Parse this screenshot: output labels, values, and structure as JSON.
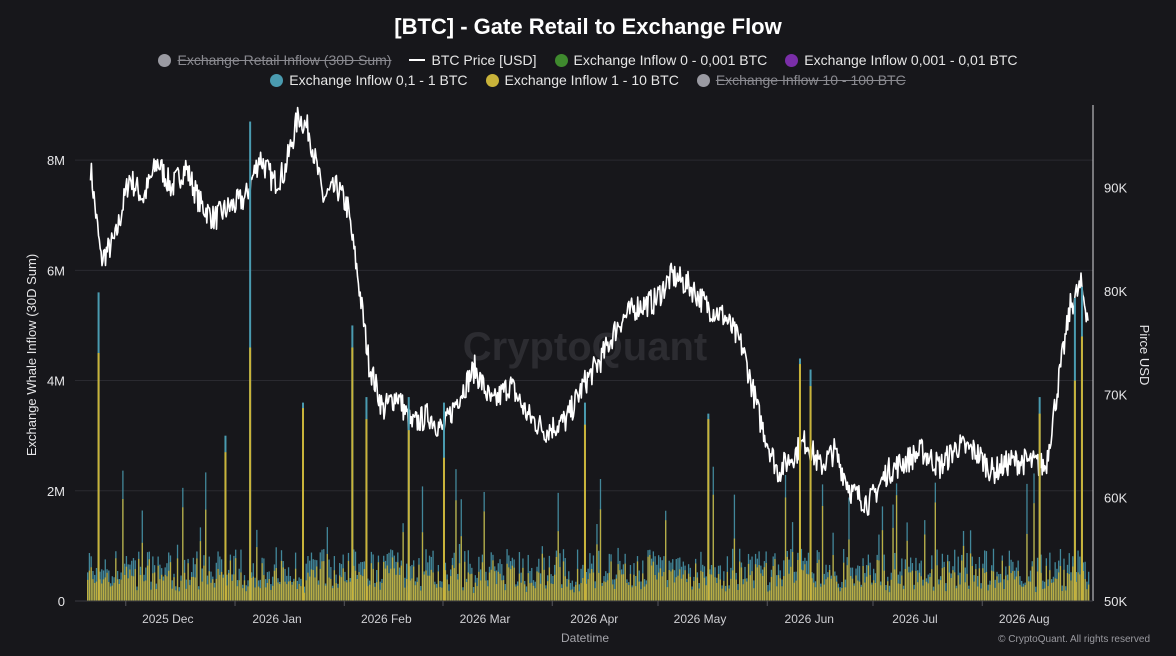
{
  "title": "[BTC] - Gate Retail to Exchange Flow",
  "legend": [
    {
      "label": "Exchange Retail Inflow (30D Sum)",
      "color": "#9a9aa2",
      "marker": "dot",
      "hidden": true
    },
    {
      "label": "BTC Price [USD]",
      "color": "#ffffff",
      "marker": "line",
      "hidden": false
    },
    {
      "label": "Exchange Inflow 0 - 0,001 BTC",
      "color": "#3f8a2e",
      "marker": "dot",
      "hidden": false
    },
    {
      "label": "Exchange Inflow 0,001 - 0,01 BTC",
      "color": "#7a2ea8",
      "marker": "dot",
      "hidden": false
    },
    {
      "label": "Exchange Inflow 0,1 - 1 BTC",
      "color": "#4a9bb0",
      "marker": "dot",
      "hidden": false
    },
    {
      "label": "Exchange Inflow 1 - 10 BTC",
      "color": "#c9b33a",
      "marker": "dot",
      "hidden": false
    },
    {
      "label": "Exchange Inflow 10 - 100 BTC",
      "color": "#9a9aa2",
      "marker": "dot",
      "hidden": true
    }
  ],
  "watermark": "CryptoQuant",
  "footer": "© CryptoQuant. All rights reserved",
  "chart_data": {
    "type": "bar",
    "xlabel": "Datetime",
    "ylabel": "Exchange Whale Inflow (30D Sum)",
    "y2label": "Pirce USD",
    "ylim": [
      0,
      9000000
    ],
    "y2lim": [
      50000,
      98000
    ],
    "y_ticks": [
      {
        "value": 0,
        "label": "0"
      },
      {
        "value": 2000000,
        "label": "2M"
      },
      {
        "value": 4000000,
        "label": "4M"
      },
      {
        "value": 6000000,
        "label": "6M"
      },
      {
        "value": 8000000,
        "label": "8M"
      }
    ],
    "y2_ticks": [
      {
        "value": 50000,
        "label": "50K"
      },
      {
        "value": 60000,
        "label": "60K"
      },
      {
        "value": 70000,
        "label": "70K"
      },
      {
        "value": 80000,
        "label": "80K"
      },
      {
        "value": 90000,
        "label": "90K"
      }
    ],
    "x_range": [
      "2025-11-20",
      "2026-08-31"
    ],
    "x_ticks": [
      {
        "date": "2025-12-01",
        "label": "2025 Dec"
      },
      {
        "date": "2026-01-01",
        "label": "2026 Jan"
      },
      {
        "date": "2026-02-01",
        "label": "2026 Feb"
      },
      {
        "date": "2026-03-01",
        "label": "2026 Mar"
      },
      {
        "date": "2026-04-01",
        "label": "2026 Apr"
      },
      {
        "date": "2026-05-01",
        "label": "2026 May"
      },
      {
        "date": "2026-06-01",
        "label": "2026 Jun"
      },
      {
        "date": "2026-07-01",
        "label": "2026 Jul"
      },
      {
        "date": "2026-08-01",
        "label": "2026 Aug"
      }
    ],
    "price_series": {
      "name": "BTC Price [USD]",
      "color": "#ffffff",
      "points": [
        [
          "2025-11-21",
          92000
        ],
        [
          "2025-11-24",
          83000
        ],
        [
          "2025-11-28",
          85000
        ],
        [
          "2025-12-02",
          91000
        ],
        [
          "2025-12-06",
          89000
        ],
        [
          "2025-12-10",
          92500
        ],
        [
          "2025-12-14",
          90000
        ],
        [
          "2025-12-18",
          92000
        ],
        [
          "2025-12-22",
          88500
        ],
        [
          "2025-12-26",
          87000
        ],
        [
          "2025-12-30",
          88000
        ],
        [
          "2026-01-04",
          89000
        ],
        [
          "2026-01-08",
          93000
        ],
        [
          "2026-01-12",
          90500
        ],
        [
          "2026-01-15",
          91500
        ],
        [
          "2026-01-19",
          97000
        ],
        [
          "2026-01-22",
          95500
        ],
        [
          "2026-01-26",
          89000
        ],
        [
          "2026-01-30",
          90000
        ],
        [
          "2026-02-02",
          88000
        ],
        [
          "2026-02-05",
          81000
        ],
        [
          "2026-02-08",
          73000
        ],
        [
          "2026-02-12",
          68500
        ],
        [
          "2026-02-16",
          70000
        ],
        [
          "2026-02-20",
          67000
        ],
        [
          "2026-02-25",
          68000
        ],
        [
          "2026-03-01",
          66500
        ],
        [
          "2026-03-05",
          69500
        ],
        [
          "2026-03-10",
          72500
        ],
        [
          "2026-03-15",
          69000
        ],
        [
          "2026-03-20",
          71000
        ],
        [
          "2026-03-25",
          68000
        ],
        [
          "2026-03-30",
          66500
        ],
        [
          "2026-04-05",
          67500
        ],
        [
          "2026-04-10",
          71000
        ],
        [
          "2026-04-15",
          73500
        ],
        [
          "2026-04-20",
          77000
        ],
        [
          "2026-04-25",
          78500
        ],
        [
          "2026-04-30",
          79000
        ],
        [
          "2026-05-05",
          81500
        ],
        [
          "2026-05-10",
          80500
        ],
        [
          "2026-05-15",
          78500
        ],
        [
          "2026-05-20",
          77500
        ],
        [
          "2026-05-25",
          74500
        ],
        [
          "2026-05-30",
          67500
        ],
        [
          "2026-06-04",
          62500
        ],
        [
          "2026-06-08",
          64000
        ],
        [
          "2026-06-12",
          65500
        ],
        [
          "2026-06-16",
          63000
        ],
        [
          "2026-06-20",
          64500
        ],
        [
          "2026-06-25",
          60500
        ],
        [
          "2026-06-30",
          59500
        ],
        [
          "2026-07-05",
          62500
        ],
        [
          "2026-07-10",
          63500
        ],
        [
          "2026-07-15",
          64500
        ],
        [
          "2026-07-20",
          63000
        ],
        [
          "2026-07-25",
          65000
        ],
        [
          "2026-07-30",
          64500
        ],
        [
          "2026-08-04",
          62500
        ],
        [
          "2026-08-09",
          63500
        ],
        [
          "2026-08-14",
          63500
        ],
        [
          "2026-08-19",
          63000
        ],
        [
          "2026-08-23",
          72000
        ],
        [
          "2026-08-26",
          78500
        ],
        [
          "2026-08-29",
          80500
        ],
        [
          "2026-08-31",
          77500
        ]
      ]
    },
    "bar_series": [
      {
        "name": "Exchange Inflow 0,1 - 1 BTC",
        "color": "#4a9bb0"
      },
      {
        "name": "Exchange Inflow 1 - 10 BTC",
        "color": "#c9b33a"
      }
    ],
    "notable_spikes": [
      {
        "date": "2025-11-23",
        "inflow_01_1": 5600000,
        "inflow_1_10": 4500000
      },
      {
        "date": "2025-12-29",
        "inflow_01_1": 3000000,
        "inflow_1_10": 2700000
      },
      {
        "date": "2026-01-05",
        "inflow_01_1": 8700000,
        "inflow_1_10": 4600000
      },
      {
        "date": "2026-01-20",
        "inflow_01_1": 3600000,
        "inflow_1_10": 3500000
      },
      {
        "date": "2026-02-03",
        "inflow_01_1": 5000000,
        "inflow_1_10": 4600000
      },
      {
        "date": "2026-02-07",
        "inflow_01_1": 3700000,
        "inflow_1_10": 3300000
      },
      {
        "date": "2026-02-19",
        "inflow_01_1": 3700000,
        "inflow_1_10": 3100000
      },
      {
        "date": "2026-03-01",
        "inflow_01_1": 3600000,
        "inflow_1_10": 2600000
      },
      {
        "date": "2026-04-10",
        "inflow_01_1": 3600000,
        "inflow_1_10": 3200000
      },
      {
        "date": "2026-05-15",
        "inflow_01_1": 3400000,
        "inflow_1_10": 3300000
      },
      {
        "date": "2026-06-10",
        "inflow_01_1": 4400000,
        "inflow_1_10": 4300000
      },
      {
        "date": "2026-06-13",
        "inflow_01_1": 4200000,
        "inflow_1_10": 3900000
      },
      {
        "date": "2026-08-17",
        "inflow_01_1": 3700000,
        "inflow_1_10": 3400000
      },
      {
        "date": "2026-08-27",
        "inflow_01_1": 5500000,
        "inflow_1_10": 4000000
      },
      {
        "date": "2026-08-29",
        "inflow_01_1": 5700000,
        "inflow_1_10": 4800000
      }
    ]
  }
}
